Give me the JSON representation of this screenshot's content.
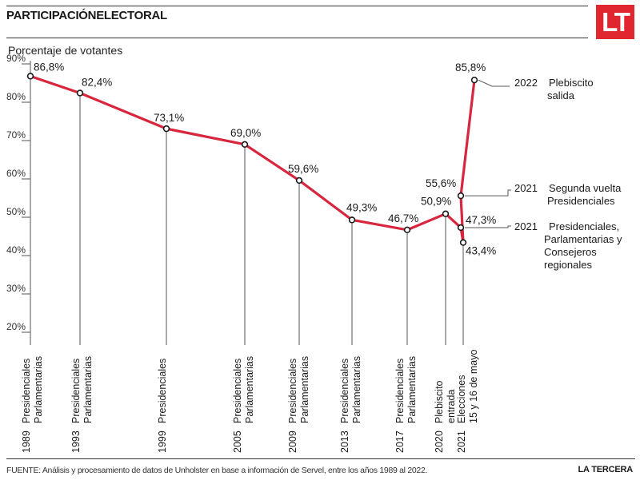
{
  "header": {
    "title": "PARTICIPACIÓNELECTORAL",
    "logo": "LT"
  },
  "footer": {
    "source": "FUENTE: Análisis y procesamiento de datos de Unholster en base a información de Servel, entre los años 1989 al 2022.",
    "brand": "LA TERCERA"
  },
  "colors": {
    "line": "#d7263d",
    "logo_bg": "#e0262e"
  },
  "chart_data": {
    "type": "line",
    "title": "",
    "ylabel": "Porcentaje de votantes",
    "xlabel": "",
    "ylim": [
      20,
      90
    ],
    "yticks": [
      "20%",
      "30%",
      "40%",
      "50%",
      "60%",
      "70%",
      "80%",
      "90%"
    ],
    "grid": false,
    "series": [
      {
        "values": [
          86.8,
          82.4,
          73.1,
          69.0,
          59.6,
          49.3,
          46.7,
          50.9,
          47.3,
          43.4,
          55.6,
          85.8
        ],
        "labels": [
          "86,8%",
          "82,4%",
          "73,1%",
          "69,0%",
          "59,6%",
          "49,3%",
          "46,7%",
          "50,9%",
          "47,3%",
          "43,4%",
          "55,6%",
          "85,8%"
        ]
      }
    ],
    "events": [
      {
        "year": "1989",
        "lines": [
          "Presidenciales",
          "Parlamentarias"
        ]
      },
      {
        "year": "1993",
        "lines": [
          "Presidenciales",
          "Parlamentarias"
        ]
      },
      {
        "year": "1999",
        "lines": [
          "Presidenciales"
        ]
      },
      {
        "year": "2005",
        "lines": [
          "Presidenciales",
          "Parlamentarias"
        ]
      },
      {
        "year": "2009",
        "lines": [
          "Presidenciales",
          "Parlamentarias"
        ]
      },
      {
        "year": "2013",
        "lines": [
          "Presidenciales",
          "Parlamentarias"
        ]
      },
      {
        "year": "2017",
        "lines": [
          "Presidenciales",
          "Parlamentarias"
        ]
      },
      {
        "year": "2020",
        "lines": [
          "Plebiscito",
          "entrada"
        ]
      },
      {
        "year": "2021",
        "lines": [
          "Elecciones",
          "15 y 16 de mayo"
        ]
      }
    ],
    "annotations": [
      {
        "year": "2022",
        "lines": [
          "Plebiscito",
          "salida"
        ]
      },
      {
        "year": "2021",
        "lines": [
          "Segunda vuelta",
          "Presidenciales"
        ]
      },
      {
        "year": "2021",
        "lines": [
          "Presidenciales,",
          "Parlamentarias y",
          "Consejeros",
          "regionales"
        ]
      }
    ]
  }
}
